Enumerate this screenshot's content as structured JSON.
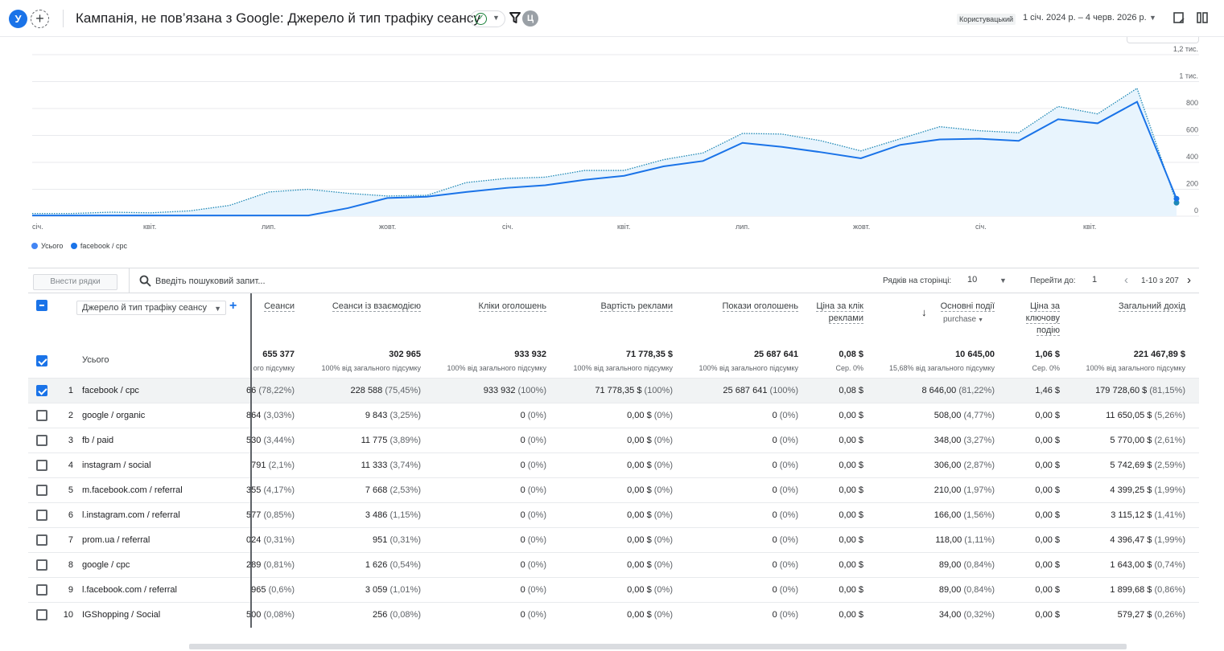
{
  "topbar": {
    "avatar": "У",
    "title": "Кампанія, не пов’язана з Google: Джерело й тип трафіку сеансу",
    "compare_badge": "Ц",
    "date_chip": "Користувацький",
    "date_range": "1 січ. 2024 р. – 4 черв. 2026 р."
  },
  "chart": {
    "y_ticks": [
      "1,2 тис.",
      "1 тис.",
      "800",
      "600",
      "400",
      "200",
      "0"
    ],
    "x_ticks": [
      "січ.",
      "квіт.",
      "лип.",
      "жовт.",
      "січ.",
      "квіт.",
      "лип.",
      "жовт.",
      "січ.",
      "квіт."
    ],
    "legend": [
      {
        "label": "Усього",
        "color": "#4285f4"
      },
      {
        "label": "facebook / cpc",
        "color": "#1a73e8"
      }
    ]
  },
  "chart_data": {
    "type": "line",
    "x": [
      "січ.",
      "",
      "квіт.",
      "",
      "",
      "лип.",
      "",
      "",
      "жовт.",
      "",
      "",
      "січ.",
      "",
      "",
      "квіт.",
      "",
      "",
      "лип.",
      "",
      "",
      "жовт.",
      "",
      "",
      "січ.",
      "",
      "",
      "квіт.",
      "",
      "",
      ""
    ],
    "ylim": [
      0,
      1200
    ],
    "series": [
      {
        "name": "Усього",
        "style": "dotted",
        "values": [
          20,
          20,
          30,
          25,
          40,
          80,
          180,
          200,
          170,
          150,
          155,
          250,
          280,
          290,
          340,
          340,
          420,
          470,
          615,
          610,
          560,
          485,
          575,
          665,
          635,
          620,
          815,
          760,
          950,
          100
        ]
      },
      {
        "name": "facebook / cpc",
        "style": "solid",
        "values": [
          5,
          5,
          5,
          5,
          5,
          5,
          5,
          5,
          60,
          135,
          145,
          180,
          210,
          230,
          270,
          300,
          370,
          410,
          545,
          515,
          475,
          430,
          530,
          570,
          575,
          560,
          720,
          690,
          850,
          130
        ]
      }
    ],
    "grid": true
  },
  "toolbar": {
    "plot_rows": "Внести рядки",
    "search_placeholder": "Введіть пошуковий запит...",
    "rows_label": "Рядків на сторінці:",
    "rows_value": "10",
    "goto_label": "Перейти до:",
    "goto_value": "1",
    "pagination": "1-10 з 207"
  },
  "table": {
    "dimension": "Джерело й тип трафіку сеансу",
    "headers": [
      {
        "label": "Сеанси"
      },
      {
        "label": "Сеанси із взаємодією"
      },
      {
        "label": "Кліки оголошень"
      },
      {
        "label": "Вартість реклами"
      },
      {
        "label": "Покази оголошень"
      },
      {
        "label": "Ціна за клік реклами"
      },
      {
        "label": "Основні події",
        "sub": "purchase"
      },
      {
        "label": "Ціна за ключову подію"
      },
      {
        "label": "Загальний дохід"
      }
    ],
    "totals_label": "Усього",
    "totals": [
      {
        "value": "655 377",
        "sub": "ого підсумку"
      },
      {
        "value": "302 965",
        "sub": "100% від загального підсумку"
      },
      {
        "value": "933 932",
        "sub": "100% від загального підсумку"
      },
      {
        "value": "71 778,35 $",
        "sub": "100% від загального підсумку"
      },
      {
        "value": "25 687 641",
        "sub": "100% від загального підсумку"
      },
      {
        "value": "0,08 $",
        "sub": "Сер. 0%"
      },
      {
        "value": "10 645,00",
        "sub": "15,68% від загального підсумку"
      },
      {
        "value": "1,06 $",
        "sub": "Сер. 0%"
      },
      {
        "value": "221 467,89 $",
        "sub": "100% від загального підсумку"
      }
    ],
    "rows": [
      {
        "n": "1",
        "name": "facebook / cpc",
        "checked": true,
        "cells": [
          [
            "66",
            "(78,22%)"
          ],
          [
            "228 588",
            "(75,45%)"
          ],
          [
            "933 932",
            "(100%)"
          ],
          [
            "71 778,35 $",
            "(100%)"
          ],
          [
            "25 687 641",
            "(100%)"
          ],
          [
            "0,08 $",
            ""
          ],
          [
            "8 646,00",
            "(81,22%)"
          ],
          [
            "1,46 $",
            ""
          ],
          [
            "179 728,60 $",
            "(81,15%)"
          ]
        ]
      },
      {
        "n": "2",
        "name": "google / organic",
        "checked": false,
        "cells": [
          [
            "864",
            "(3,03%)"
          ],
          [
            "9 843",
            "(3,25%)"
          ],
          [
            "0",
            "(0%)"
          ],
          [
            "0,00 $",
            "(0%)"
          ],
          [
            "0",
            "(0%)"
          ],
          [
            "0,00 $",
            ""
          ],
          [
            "508,00",
            "(4,77%)"
          ],
          [
            "0,00 $",
            ""
          ],
          [
            "11 650,05 $",
            "(5,26%)"
          ]
        ]
      },
      {
        "n": "3",
        "name": "fb / paid",
        "checked": false,
        "cells": [
          [
            "530",
            "(3,44%)"
          ],
          [
            "11 775",
            "(3,89%)"
          ],
          [
            "0",
            "(0%)"
          ],
          [
            "0,00 $",
            "(0%)"
          ],
          [
            "0",
            "(0%)"
          ],
          [
            "0,00 $",
            ""
          ],
          [
            "348,00",
            "(3,27%)"
          ],
          [
            "0,00 $",
            ""
          ],
          [
            "5 770,00 $",
            "(2,61%)"
          ]
        ]
      },
      {
        "n": "4",
        "name": "instagram / social",
        "checked": false,
        "cells": [
          [
            "791",
            "(2,1%)"
          ],
          [
            "11 333",
            "(3,74%)"
          ],
          [
            "0",
            "(0%)"
          ],
          [
            "0,00 $",
            "(0%)"
          ],
          [
            "0",
            "(0%)"
          ],
          [
            "0,00 $",
            ""
          ],
          [
            "306,00",
            "(2,87%)"
          ],
          [
            "0,00 $",
            ""
          ],
          [
            "5 742,69 $",
            "(2,59%)"
          ]
        ]
      },
      {
        "n": "5",
        "name": "m.facebook.com / referral",
        "checked": false,
        "cells": [
          [
            "355",
            "(4,17%)"
          ],
          [
            "7 668",
            "(2,53%)"
          ],
          [
            "0",
            "(0%)"
          ],
          [
            "0,00 $",
            "(0%)"
          ],
          [
            "0",
            "(0%)"
          ],
          [
            "0,00 $",
            ""
          ],
          [
            "210,00",
            "(1,97%)"
          ],
          [
            "0,00 $",
            ""
          ],
          [
            "4 399,25 $",
            "(1,99%)"
          ]
        ]
      },
      {
        "n": "6",
        "name": "l.instagram.com / referral",
        "checked": false,
        "cells": [
          [
            "577",
            "(0,85%)"
          ],
          [
            "3 486",
            "(1,15%)"
          ],
          [
            "0",
            "(0%)"
          ],
          [
            "0,00 $",
            "(0%)"
          ],
          [
            "0",
            "(0%)"
          ],
          [
            "0,00 $",
            ""
          ],
          [
            "166,00",
            "(1,56%)"
          ],
          [
            "0,00 $",
            ""
          ],
          [
            "3 115,12 $",
            "(1,41%)"
          ]
        ]
      },
      {
        "n": "7",
        "name": "prom.ua / referral",
        "checked": false,
        "cells": [
          [
            "024",
            "(0,31%)"
          ],
          [
            "951",
            "(0,31%)"
          ],
          [
            "0",
            "(0%)"
          ],
          [
            "0,00 $",
            "(0%)"
          ],
          [
            "0",
            "(0%)"
          ],
          [
            "0,00 $",
            ""
          ],
          [
            "118,00",
            "(1,11%)"
          ],
          [
            "0,00 $",
            ""
          ],
          [
            "4 396,47 $",
            "(1,99%)"
          ]
        ]
      },
      {
        "n": "8",
        "name": "google / cpc",
        "checked": false,
        "cells": [
          [
            "289",
            "(0,81%)"
          ],
          [
            "1 626",
            "(0,54%)"
          ],
          [
            "0",
            "(0%)"
          ],
          [
            "0,00 $",
            "(0%)"
          ],
          [
            "0",
            "(0%)"
          ],
          [
            "0,00 $",
            ""
          ],
          [
            "89,00",
            "(0,84%)"
          ],
          [
            "0,00 $",
            ""
          ],
          [
            "1 643,00 $",
            "(0,74%)"
          ]
        ]
      },
      {
        "n": "9",
        "name": "l.facebook.com / referral",
        "checked": false,
        "cells": [
          [
            "965",
            "(0,6%)"
          ],
          [
            "3 059",
            "(1,01%)"
          ],
          [
            "0",
            "(0%)"
          ],
          [
            "0,00 $",
            "(0%)"
          ],
          [
            "0",
            "(0%)"
          ],
          [
            "0,00 $",
            ""
          ],
          [
            "89,00",
            "(0,84%)"
          ],
          [
            "0,00 $",
            ""
          ],
          [
            "1 899,68 $",
            "(0,86%)"
          ]
        ]
      },
      {
        "n": "10",
        "name": "IGShopping / Social",
        "checked": false,
        "cells": [
          [
            "500",
            "(0,08%)"
          ],
          [
            "256",
            "(0,08%)"
          ],
          [
            "0",
            "(0%)"
          ],
          [
            "0,00 $",
            "(0%)"
          ],
          [
            "0",
            "(0%)"
          ],
          [
            "0,00 $",
            ""
          ],
          [
            "34,00",
            "(0,32%)"
          ],
          [
            "0,00 $",
            ""
          ],
          [
            "579,27 $",
            "(0,26%)"
          ]
        ]
      }
    ]
  }
}
